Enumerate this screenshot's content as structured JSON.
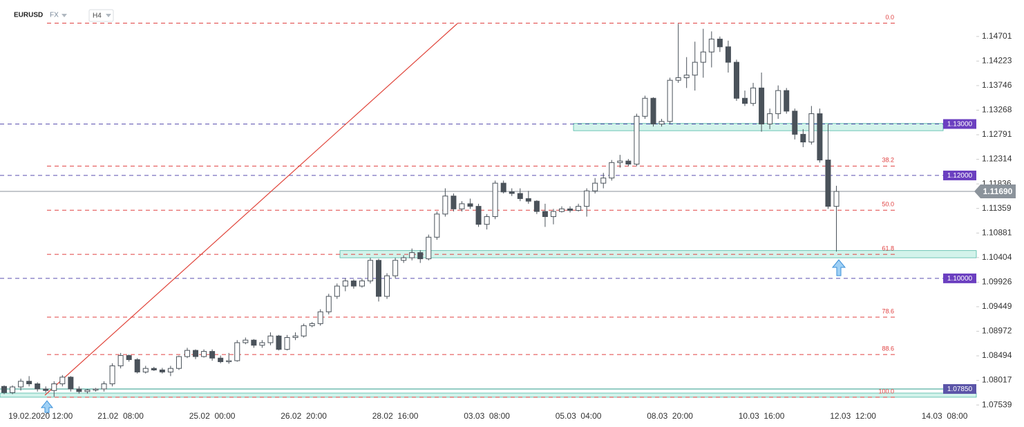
{
  "chart_data": {
    "type": "candlestick",
    "symbol": "EURUSD",
    "market": "FX",
    "timeframe": "H4",
    "categories": [
      null,
      null,
      null,
      "19.02.2020",
      null,
      null,
      null,
      "12:00",
      null,
      null,
      null,
      null,
      null,
      null,
      "21.02  08:00",
      null,
      null,
      null,
      null,
      null,
      null,
      null,
      null,
      null,
      null,
      "25.02  00:00",
      null,
      null,
      null,
      null,
      null,
      null,
      null,
      null,
      null,
      null,
      "26.02  20:00",
      null,
      null,
      null,
      null,
      null,
      null,
      null,
      null,
      null,
      null,
      "28.02  16:00",
      null,
      null,
      null,
      null,
      null,
      null,
      null,
      null,
      null,
      null,
      "03.03  08:00",
      null,
      null,
      null,
      null,
      null,
      null,
      null,
      null,
      null,
      null,
      "05.03  04:00",
      null,
      null,
      null,
      null,
      null,
      null,
      null,
      null,
      null,
      null,
      "08.03  20:00",
      null,
      null,
      null,
      null,
      null,
      null,
      null,
      null,
      null,
      null,
      "10.03  16:00",
      null,
      null,
      null,
      null,
      null,
      null,
      null,
      null,
      null,
      null,
      "12.03  12:00",
      null,
      null,
      null,
      null,
      null,
      null,
      null,
      null,
      null,
      null,
      "14.03  08:00",
      null,
      null,
      null
    ],
    "open": [
      1.079,
      1.0778,
      1.0789,
      1.08,
      1.0795,
      1.0785,
      1.0782,
      1.0795,
      1.0808,
      1.0785,
      1.078,
      1.0783,
      1.0785,
      1.0795,
      1.083,
      1.085,
      1.0842,
      1.0818,
      1.0825,
      1.0822,
      1.0818,
      1.0825,
      1.0848,
      1.086,
      1.0848,
      1.0858,
      1.0845,
      1.0838,
      1.084,
      1.0875,
      1.088,
      1.087,
      1.0875,
      1.0888,
      1.0862,
      1.0885,
      1.0888,
      1.0908,
      1.0912,
      1.0935,
      1.0965,
      1.0985,
      1.0995,
      1.0985,
      1.0995,
      1.1035,
      1.0965,
      1.1005,
      1.1035,
      1.104,
      1.105,
      1.1038,
      1.108,
      1.1125,
      1.116,
      1.1135,
      1.1145,
      1.114,
      1.1105,
      1.112,
      1.1185,
      1.1168,
      1.1165,
      1.1155,
      1.115,
      1.113,
      1.112,
      1.113,
      1.1135,
      1.1132,
      1.114,
      1.117,
      1.1185,
      1.1195,
      1.1225,
      1.1228,
      1.1222,
      1.1315,
      1.135,
      1.13,
      1.1305,
      1.1385,
      1.139,
      1.1395,
      1.142,
      1.144,
      1.1465,
      1.145,
      1.142,
      1.135,
      1.134,
      1.137,
      1.13,
      1.132,
      1.1365,
      1.1325,
      1.128,
      1.1265,
      1.132,
      1.123,
      1.114,
      null,
      null,
      null,
      null,
      null,
      null,
      null,
      null,
      null,
      null,
      null,
      null,
      null,
      null,
      null,
      null
    ],
    "high": [
      1.0792,
      1.0792,
      1.0805,
      1.081,
      1.0798,
      1.079,
      1.08,
      1.0812,
      1.081,
      1.079,
      1.0785,
      1.0787,
      1.08,
      1.0835,
      1.0855,
      1.0852,
      1.0845,
      1.083,
      1.0828,
      1.0826,
      1.083,
      1.085,
      1.0865,
      1.0862,
      1.0862,
      1.0862,
      1.085,
      1.0855,
      1.088,
      1.0885,
      1.0882,
      1.088,
      1.0895,
      1.089,
      1.089,
      1.0895,
      1.0912,
      1.0915,
      1.094,
      1.097,
      1.099,
      1.1,
      1.0998,
      1.1,
      1.104,
      1.1038,
      1.101,
      1.104,
      1.1045,
      1.1058,
      1.1055,
      1.1085,
      1.113,
      1.1175,
      1.1165,
      1.115,
      1.1155,
      1.1145,
      1.1125,
      1.119,
      1.119,
      1.1175,
      1.1175,
      1.117,
      1.1152,
      1.1145,
      1.1135,
      1.114,
      1.114,
      1.1145,
      1.1175,
      1.1195,
      1.1205,
      1.123,
      1.124,
      1.1232,
      1.132,
      1.1355,
      1.1352,
      1.131,
      1.139,
      1.1495,
      1.143,
      1.146,
      1.1485,
      1.148,
      1.147,
      1.1462,
      1.1425,
      1.1365,
      1.138,
      1.14,
      1.133,
      1.1375,
      1.137,
      1.133,
      1.129,
      1.1335,
      1.133,
      1.13,
      1.118,
      null,
      null,
      null,
      null,
      null,
      null,
      null,
      null,
      null,
      null,
      null,
      null,
      null,
      null,
      null,
      null
    ],
    "low": [
      1.0775,
      1.0775,
      1.0782,
      1.079,
      1.078,
      1.0778,
      1.077,
      1.079,
      1.078,
      1.0776,
      1.0776,
      1.078,
      1.078,
      1.079,
      1.0825,
      1.0838,
      1.0815,
      1.0815,
      1.082,
      1.0815,
      1.081,
      1.0822,
      1.0845,
      1.0843,
      1.0846,
      1.084,
      1.0835,
      1.0834,
      1.0838,
      1.0872,
      1.0865,
      1.0865,
      1.087,
      1.086,
      1.086,
      1.088,
      1.0885,
      1.0905,
      1.0908,
      1.093,
      1.096,
      1.0975,
      1.098,
      1.0982,
      1.099,
      1.0955,
      1.096,
      1.1,
      1.103,
      1.1035,
      1.103,
      1.1035,
      1.1075,
      1.112,
      1.113,
      1.113,
      1.1135,
      1.11,
      1.1095,
      1.1115,
      1.1165,
      1.116,
      1.115,
      1.1145,
      1.1125,
      1.11,
      1.1105,
      1.1128,
      1.1128,
      1.113,
      1.112,
      1.1165,
      1.1175,
      1.119,
      1.1215,
      1.1218,
      1.1218,
      1.131,
      1.1295,
      1.1295,
      1.13,
      1.138,
      1.137,
      1.1365,
      1.139,
      1.141,
      1.144,
      1.14,
      1.1345,
      1.1335,
      1.1335,
      1.1285,
      1.129,
      1.131,
      1.132,
      1.127,
      1.1255,
      1.126,
      1.1225,
      1.1135,
      1.1052,
      null,
      null,
      null,
      null,
      null,
      null,
      null,
      null,
      null,
      null,
      null,
      null,
      null,
      null,
      null,
      null
    ],
    "close": [
      1.0778,
      1.0789,
      1.08,
      1.0795,
      1.0785,
      1.0782,
      1.0795,
      1.0808,
      1.0785,
      1.078,
      1.0783,
      1.0785,
      1.0795,
      1.083,
      1.085,
      1.0842,
      1.0818,
      1.0825,
      1.0822,
      1.0818,
      1.0825,
      1.0848,
      1.086,
      1.0848,
      1.0858,
      1.0845,
      1.0838,
      1.084,
      1.0875,
      1.088,
      1.087,
      1.0875,
      1.0888,
      1.0862,
      1.0885,
      1.0888,
      1.0908,
      1.0912,
      1.0935,
      1.0965,
      1.0985,
      1.0995,
      1.0985,
      1.0995,
      1.1035,
      1.0965,
      1.1005,
      1.1035,
      1.104,
      1.105,
      1.1038,
      1.108,
      1.1125,
      1.116,
      1.1135,
      1.1145,
      1.114,
      1.1105,
      1.112,
      1.1185,
      1.1168,
      1.1165,
      1.1155,
      1.115,
      1.113,
      1.112,
      1.113,
      1.1135,
      1.1132,
      1.114,
      1.117,
      1.1185,
      1.1195,
      1.1225,
      1.1228,
      1.1222,
      1.1315,
      1.135,
      1.13,
      1.1305,
      1.1385,
      1.139,
      1.1395,
      1.142,
      1.144,
      1.1465,
      1.145,
      1.142,
      1.135,
      1.134,
      1.137,
      1.13,
      1.132,
      1.1365,
      1.1325,
      1.128,
      1.1265,
      1.132,
      1.123,
      1.114,
      1.1169,
      null,
      null,
      null,
      null,
      null,
      null,
      null,
      null,
      null,
      null,
      null,
      null,
      null,
      null,
      null,
      null
    ],
    "up_color": "#ffffff",
    "down_color": "#4a525a",
    "outline_color": "#4a525a",
    "ylim": [
      1.0742,
      1.1541
    ],
    "yticks": [
      1.14701,
      1.14223,
      1.13746,
      1.13268,
      1.12791,
      1.12314,
      1.11836,
      1.11359,
      1.10881,
      1.10404,
      1.09926,
      1.09449,
      1.08972,
      1.08494,
      1.08017,
      1.07539
    ],
    "levels": [
      {
        "value": 1.13,
        "label": "1.13000"
      },
      {
        "value": 1.12,
        "label": "1.12000"
      },
      {
        "value": 1.1,
        "label": "1.10000"
      },
      {
        "value": 1.0785,
        "label": "1.07850"
      }
    ],
    "last_price": {
      "value": 1.1169,
      "label": "1.11690"
    },
    "fibonacci": {
      "high": 1.1496,
      "low": 1.0769,
      "levels": [
        {
          "value": 0,
          "label": "0.0"
        },
        38.2,
        {
          "value": 50,
          "label": "50.0"
        },
        61.8,
        78.6,
        88.6,
        {
          "value": 100,
          "label": "100.0"
        }
      ]
    },
    "zones": [
      {
        "low": 1.1287,
        "high": 1.1301
      },
      {
        "low": 1.104,
        "high": 1.1054
      },
      {
        "low": 1.0769,
        "high": 1.0777
      }
    ]
  }
}
